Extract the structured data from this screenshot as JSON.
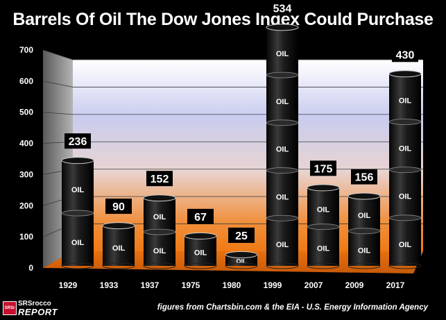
{
  "chart_data": {
    "type": "bar",
    "title": "Barrels Of Oil The Dow Jones Index Could Purchase",
    "categories": [
      "1929",
      "1933",
      "1937",
      "1975",
      "1980",
      "1999",
      "2007",
      "2009",
      "2017"
    ],
    "values": [
      236,
      90,
      152,
      67,
      25,
      534,
      175,
      156,
      430
    ],
    "barrel_label": "OIL",
    "ylim": [
      0,
      700
    ],
    "yticks": [
      0,
      100,
      200,
      300,
      400,
      500,
      600,
      700
    ],
    "xlabel": "",
    "ylabel": "",
    "grid": true
  },
  "footer": {
    "source": "figures from Chartsbin.com & the EIA - U.S. Energy Information Agency",
    "logo_top": "SRSrocco",
    "logo_bottom": "REPORT",
    "logo_badge": "SRSr"
  },
  "colors": {
    "background": "#000000",
    "barrel": "#1a1a1a",
    "label_box": "#000000",
    "text": "#ffffff"
  }
}
